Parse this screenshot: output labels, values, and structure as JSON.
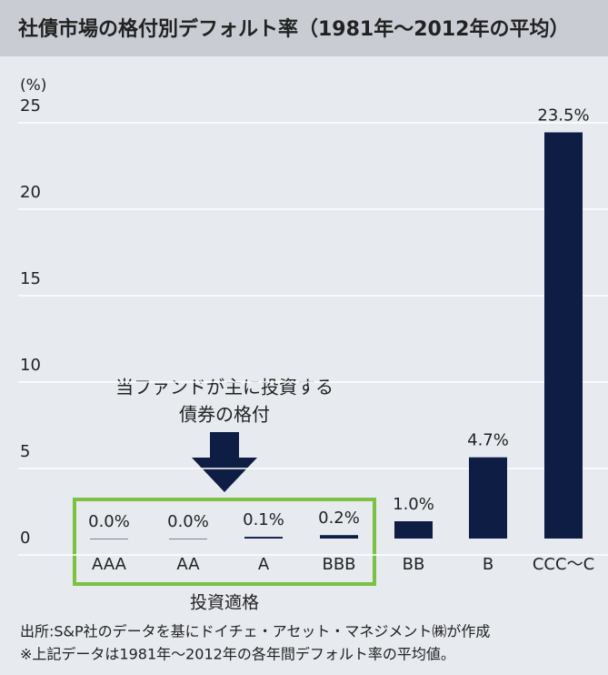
{
  "chart_data": {
    "type": "bar",
    "title": "社債市場の格付別デフォルト率（1981年〜2012年の平均）",
    "y_unit": "(%)",
    "categories": [
      "AAA",
      "AA",
      "A",
      "BBB",
      "BB",
      "B",
      "CCC〜C"
    ],
    "values": [
      0.0,
      0.0,
      0.1,
      0.2,
      1.0,
      4.7,
      23.5
    ],
    "value_labels": [
      "0.0%",
      "0.0%",
      "0.1%",
      "0.2%",
      "1.0%",
      "4.7%",
      "23.5%"
    ],
    "color": "#0e1d44",
    "ylim": [
      0,
      25
    ],
    "yticks": [
      0,
      5,
      10,
      15,
      20,
      25
    ],
    "grid": true,
    "annotation": [
      "当ファンドが主に投資する",
      "債券の格付"
    ],
    "group_label": "投資適格",
    "notes": [
      "出所:S&P社のデータを基にドイチェ・アセット・マネジメント㈱が作成",
      "※上記データは1981年〜2012年の各年間デフォルト率の平均値。"
    ]
  }
}
